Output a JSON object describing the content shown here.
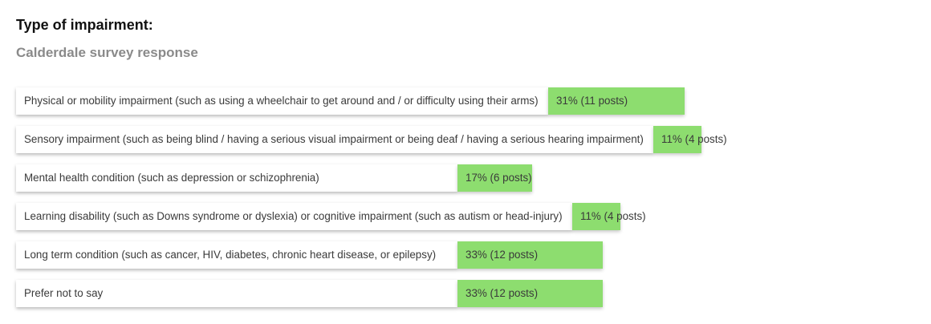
{
  "chart_data": {
    "type": "bar",
    "orientation": "horizontal",
    "title": "Type of impairment:",
    "subtitle": "Calderdale survey response",
    "categories": [
      "Physical or mobility impairment (such as using a wheelchair to get around and / or difficulty using their arms)",
      "Sensory impairment (such as being blind / having a serious visual impairment or being deaf / having a serious hearing impairment)",
      "Mental health condition (such as depression or schizophrenia)",
      "Learning disability (such as Downs syndrome or dyslexia) or cognitive impairment (such as autism or head-injury)",
      "Long term condition (such as cancer, HIV, diabetes, chronic heart disease, or epilepsy)",
      "Prefer not to say"
    ],
    "values": [
      31,
      11,
      17,
      11,
      33,
      33
    ],
    "posts": [
      11,
      4,
      6,
      4,
      12,
      12
    ],
    "value_labels": [
      "31% (11 posts)",
      "11% (4 posts)",
      "17% (6 posts)",
      "11% (4 posts)",
      "33% (12 posts)",
      "33% (12 posts)"
    ],
    "unit": "%",
    "bar_color": "#8ddd6f",
    "grid": false,
    "legend": "none"
  }
}
